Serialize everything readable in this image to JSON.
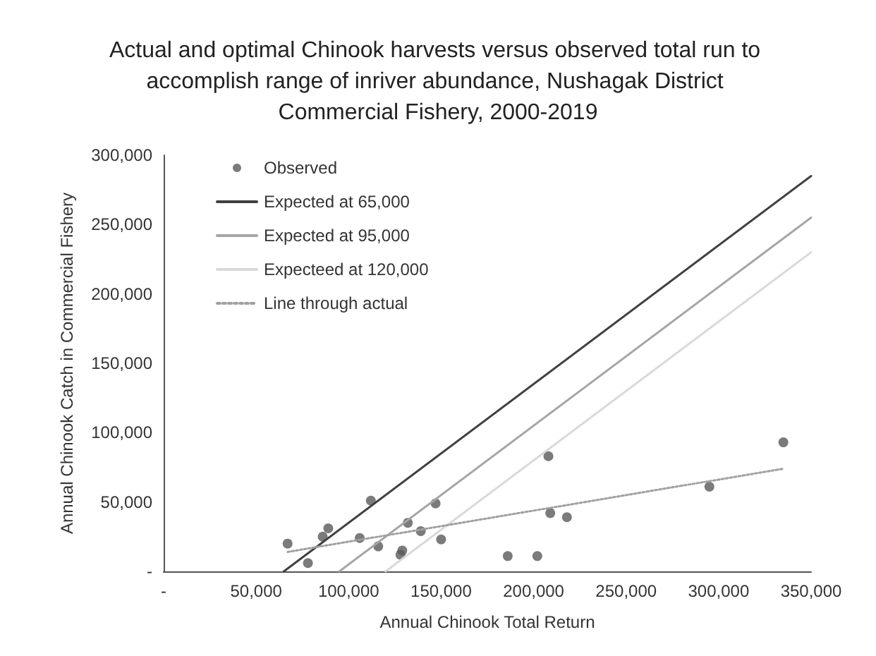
{
  "chart_data": {
    "type": "scatter",
    "title": "Actual and optimal Chinook harvests versus observed total run to accomplish range of inriver abundance, Nushagak District Commercial Fishery, 2000-2019",
    "xlabel": "Annual Chinook Total Return",
    "ylabel": "Annual Chinook Catch in Commercial Fishery",
    "xlim": [
      0,
      350000
    ],
    "ylim": [
      0,
      300000
    ],
    "xticks": [
      {
        "value": 0,
        "label": "-"
      },
      {
        "value": 50000,
        "label": "50,000"
      },
      {
        "value": 100000,
        "label": "100,000"
      },
      {
        "value": 150000,
        "label": "150,000"
      },
      {
        "value": 200000,
        "label": "200,000"
      },
      {
        "value": 250000,
        "label": "250,000"
      },
      {
        "value": 300000,
        "label": "300,000"
      },
      {
        "value": 350000,
        "label": "350,000"
      }
    ],
    "yticks": [
      {
        "value": 0,
        "label": "-"
      },
      {
        "value": 50000,
        "label": "50,000"
      },
      {
        "value": 100000,
        "label": "100,000"
      },
      {
        "value": 150000,
        "label": "150,000"
      },
      {
        "value": 200000,
        "label": "200,000"
      },
      {
        "value": 250000,
        "label": "250,000"
      },
      {
        "value": 300000,
        "label": "300,000"
      }
    ],
    "grid": false,
    "legend": "top left",
    "series": [
      {
        "name": "Observed",
        "marker": "circle",
        "color": "#5a5a5a",
        "x": [
          67000,
          78000,
          86000,
          89000,
          106000,
          112000,
          116000,
          128000,
          129000,
          132000,
          139000,
          147000,
          150000,
          186000,
          202000,
          208000,
          209000,
          218000,
          295000,
          335000
        ],
        "values": [
          20000,
          6000,
          25000,
          31000,
          24000,
          51000,
          18000,
          12000,
          15000,
          35000,
          29000,
          49000,
          23000,
          11000,
          11000,
          83000,
          42000,
          39000,
          61000,
          93000
        ]
      },
      {
        "name": "Expected at 65,000",
        "type": "line",
        "marker": "none",
        "line_style": "solid",
        "color": "#404040",
        "x": [
          65000,
          350000
        ],
        "values": [
          0,
          285000
        ]
      },
      {
        "name": "Expected at 95,000",
        "type": "line",
        "marker": "none",
        "line_style": "solid",
        "color": "#a6a6a6",
        "x": [
          95000,
          350000
        ],
        "values": [
          0,
          255000
        ]
      },
      {
        "name": "Expecteed at 120,000",
        "type": "line",
        "marker": "none",
        "line_style": "solid",
        "color": "#d9d9d9",
        "x": [
          120000,
          350000
        ],
        "values": [
          0,
          230000
        ]
      },
      {
        "name": "Line through actual",
        "type": "line",
        "marker": "none",
        "line_style": "dotted",
        "color": "#a0a0a0",
        "x": [
          67000,
          335000
        ],
        "values": [
          14000,
          74000
        ]
      }
    ]
  }
}
